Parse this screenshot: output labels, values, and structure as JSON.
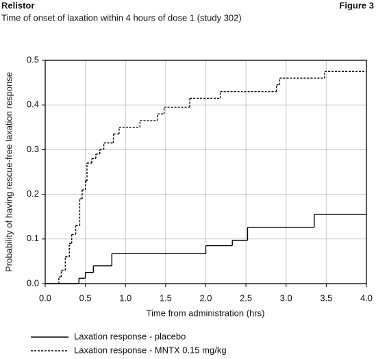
{
  "header": {
    "brand": "Relistor",
    "figure": "Figure 3",
    "subtitle": "Time of onset of laxation within 4 hours of dose 1 (study 302)"
  },
  "chart_data": {
    "type": "step-line",
    "x_label": "Time from administration (hrs)",
    "y_label": "Probability of having rescue-free laxation response",
    "xlim": [
      0,
      4
    ],
    "ylim": [
      0,
      0.5
    ],
    "xticks": [
      {
        "value": 0,
        "label": "0.0"
      },
      0.5,
      {
        "value": 1,
        "label": "1.0"
      },
      1.5,
      {
        "value": 2,
        "label": "2.0"
      },
      2.5,
      {
        "value": 3,
        "label": "3.0"
      },
      3.5,
      {
        "value": 4,
        "label": "4.0"
      }
    ],
    "yticks": [
      {
        "value": 0,
        "label": "0.0"
      },
      0.1,
      0.2,
      0.3,
      0.4,
      0.5
    ],
    "grid": true,
    "series": [
      {
        "name": "Laxation response - placebo",
        "color": "#000000",
        "line_style": "solid",
        "x": [
          0,
          0.42,
          0.5,
          0.6,
          0.83,
          2.0,
          2.33,
          2.52,
          3.35,
          4.0
        ],
        "values": [
          0,
          0.012,
          0.025,
          0.04,
          0.067,
          0.085,
          0.097,
          0.126,
          0.155,
          0.155
        ]
      },
      {
        "name": "Laxation response - MNTX 0.15 mg/kg",
        "color": "#000000",
        "line_style": "dashed",
        "x": [
          0.15,
          0.17,
          0.2,
          0.25,
          0.3,
          0.33,
          0.38,
          0.43,
          0.46,
          0.5,
          0.52,
          0.58,
          0.63,
          0.68,
          0.73,
          0.85,
          0.92,
          1.18,
          1.4,
          1.48,
          1.8,
          2.18,
          2.88,
          2.92,
          3.48,
          4.0
        ],
        "values": [
          0,
          0.015,
          0.03,
          0.06,
          0.09,
          0.11,
          0.13,
          0.19,
          0.21,
          0.23,
          0.27,
          0.28,
          0.29,
          0.3,
          0.315,
          0.335,
          0.35,
          0.365,
          0.38,
          0.395,
          0.415,
          0.43,
          0.445,
          0.46,
          0.475,
          0.475
        ]
      }
    ]
  }
}
